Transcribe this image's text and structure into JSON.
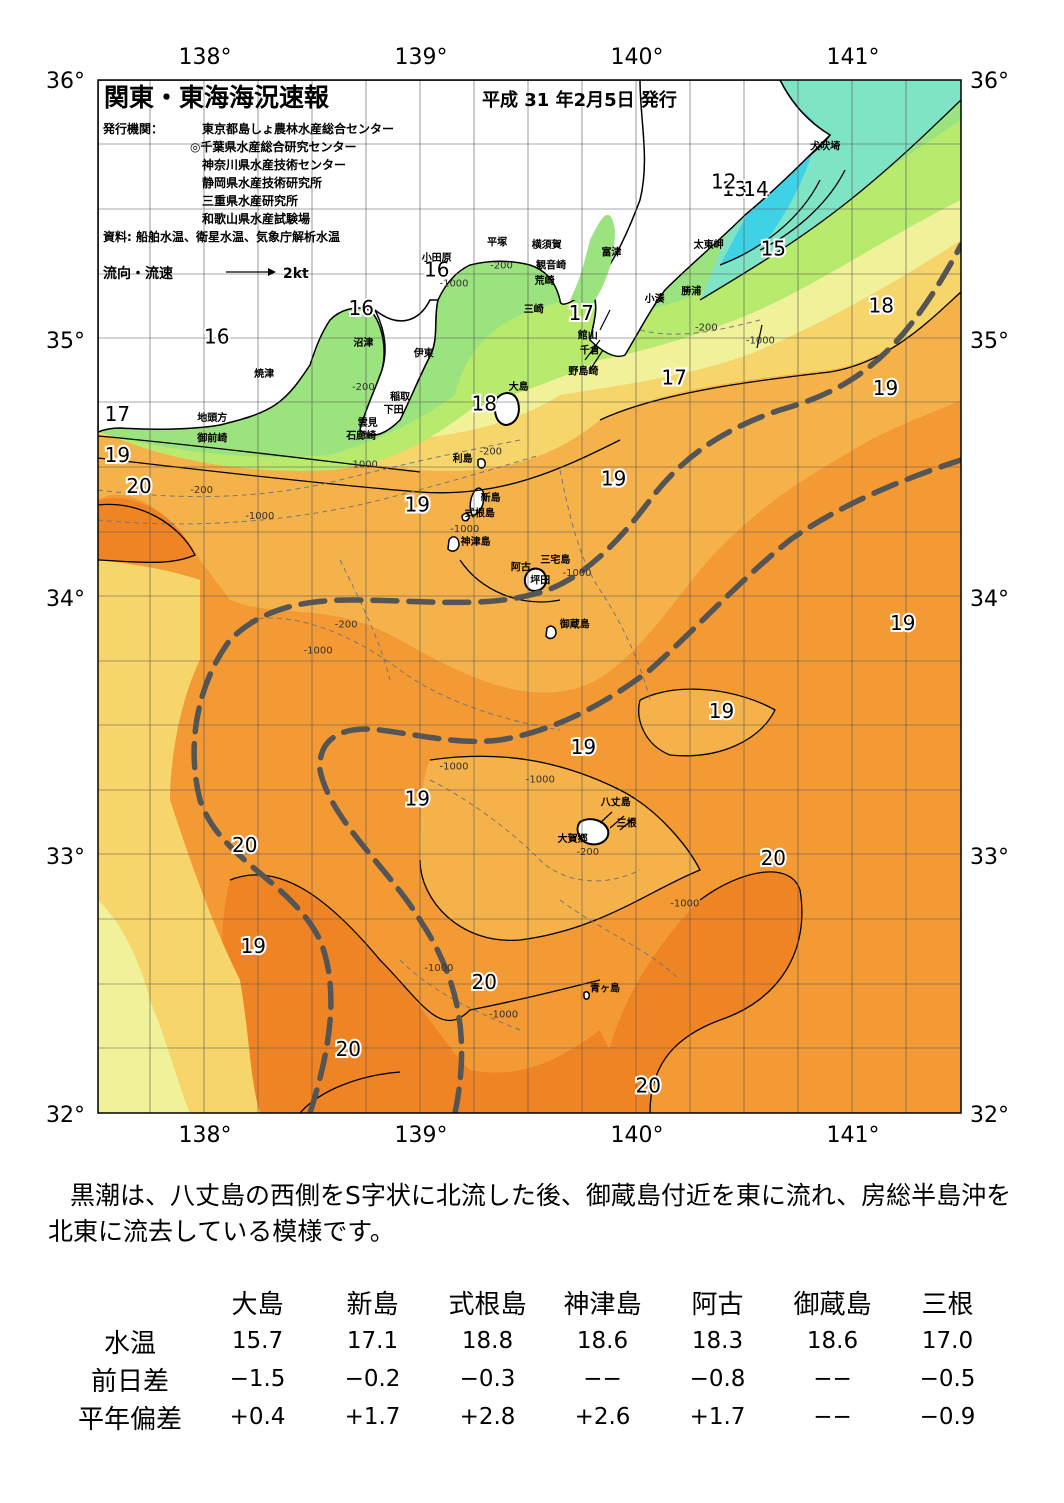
{
  "title": "関東・東海海況速報",
  "issue_date": "平成 31 年2月5日 発行",
  "issuers_label": "発行機関：",
  "issuers": [
    "東京都島しょ農林水産総合センター",
    "◎千葉県水産総合研究センター",
    "神奈川県水産技術センター",
    "静岡県水産技術研究所",
    "三重県水産研究所",
    "和歌山県水産試験場"
  ],
  "source": "資料: 船舶水温、衛星水温、気象庁解析水温",
  "flow_legend": {
    "label": "流向・流速",
    "speed": "2kt"
  },
  "axes": {
    "lon_labels": [
      "138°",
      "139°",
      "140°",
      "141°"
    ],
    "lat_labels": [
      "36°",
      "35°",
      "34°",
      "33°",
      "32°"
    ],
    "lon_range": [
      137.5,
      141.5
    ],
    "lat_range": [
      32,
      36
    ]
  },
  "place_labels": [
    {
      "text": "犬吠埼",
      "lon": 140.87,
      "lat": 35.73
    },
    {
      "text": "太東岬",
      "lon": 140.33,
      "lat": 35.35
    },
    {
      "text": "勝浦",
      "lon": 140.25,
      "lat": 35.17
    },
    {
      "text": "小湊",
      "lon": 140.08,
      "lat": 35.14
    },
    {
      "text": "富津",
      "lon": 139.88,
      "lat": 35.32
    },
    {
      "text": "横須賀",
      "lon": 139.58,
      "lat": 35.35
    },
    {
      "text": "観音崎",
      "lon": 139.6,
      "lat": 35.27
    },
    {
      "text": "荒崎",
      "lon": 139.57,
      "lat": 35.21
    },
    {
      "text": "平塚",
      "lon": 139.35,
      "lat": 35.36
    },
    {
      "text": "小田原",
      "lon": 139.07,
      "lat": 35.3
    },
    {
      "text": "三崎",
      "lon": 139.52,
      "lat": 35.1
    },
    {
      "text": "館山",
      "lon": 139.77,
      "lat": 35.0
    },
    {
      "text": "千倉",
      "lon": 139.78,
      "lat": 34.94
    },
    {
      "text": "野島崎",
      "lon": 139.75,
      "lat": 34.86
    },
    {
      "text": "沼津",
      "lon": 138.73,
      "lat": 34.97
    },
    {
      "text": "伊東",
      "lon": 139.01,
      "lat": 34.93
    },
    {
      "text": "焼津",
      "lon": 138.27,
      "lat": 34.85
    },
    {
      "text": "稲取",
      "lon": 138.9,
      "lat": 34.76
    },
    {
      "text": "下田",
      "lon": 138.87,
      "lat": 34.71
    },
    {
      "text": "雲見",
      "lon": 138.75,
      "lat": 34.66
    },
    {
      "text": "石廊崎",
      "lon": 138.72,
      "lat": 34.61
    },
    {
      "text": "地頭方",
      "lon": 138.03,
      "lat": 34.68
    },
    {
      "text": "御前崎",
      "lon": 138.03,
      "lat": 34.6
    },
    {
      "text": "大島",
      "lon": 139.45,
      "lat": 34.8
    },
    {
      "text": "利島",
      "lon": 139.19,
      "lat": 34.52
    },
    {
      "text": "新島",
      "lon": 139.32,
      "lat": 34.37
    },
    {
      "text": "式根島",
      "lon": 139.27,
      "lat": 34.31
    },
    {
      "text": "神津島",
      "lon": 139.25,
      "lat": 34.2
    },
    {
      "text": "三宅島",
      "lon": 139.62,
      "lat": 34.13
    },
    {
      "text": "阿古",
      "lon": 139.46,
      "lat": 34.1
    },
    {
      "text": "坪田",
      "lon": 139.55,
      "lat": 34.05
    },
    {
      "text": "御蔵島",
      "lon": 139.71,
      "lat": 33.88
    },
    {
      "text": "八丈島",
      "lon": 139.9,
      "lat": 33.19
    },
    {
      "text": "三根",
      "lon": 139.95,
      "lat": 33.11
    },
    {
      "text": "大賀郷",
      "lon": 139.7,
      "lat": 33.05
    },
    {
      "text": "青ヶ島",
      "lon": 139.85,
      "lat": 32.47
    }
  ],
  "isotherm_labels": [
    {
      "text": "13",
      "lon": 140.45,
      "lat": 35.55
    },
    {
      "text": "12",
      "lon": 140.4,
      "lat": 35.58
    },
    {
      "text": "14",
      "lon": 140.55,
      "lat": 35.55
    },
    {
      "text": "15",
      "lon": 140.63,
      "lat": 35.32
    },
    {
      "text": "16",
      "lon": 139.07,
      "lat": 35.24
    },
    {
      "text": "16",
      "lon": 138.72,
      "lat": 35.09
    },
    {
      "text": "16",
      "lon": 138.05,
      "lat": 34.98
    },
    {
      "text": "17",
      "lon": 139.74,
      "lat": 35.07
    },
    {
      "text": "17",
      "lon": 140.17,
      "lat": 34.82
    },
    {
      "text": "17",
      "lon": 137.59,
      "lat": 34.68
    },
    {
      "text": "18",
      "lon": 139.29,
      "lat": 34.72
    },
    {
      "text": "18",
      "lon": 141.13,
      "lat": 35.1
    },
    {
      "text": "19",
      "lon": 141.15,
      "lat": 34.78
    },
    {
      "text": "19",
      "lon": 137.59,
      "lat": 34.52
    },
    {
      "text": "19",
      "lon": 139.89,
      "lat": 34.43
    },
    {
      "text": "19",
      "lon": 138.98,
      "lat": 34.33
    },
    {
      "text": "19",
      "lon": 141.23,
      "lat": 33.87
    },
    {
      "text": "19",
      "lon": 140.39,
      "lat": 33.53
    },
    {
      "text": "19",
      "lon": 139.75,
      "lat": 33.39
    },
    {
      "text": "19",
      "lon": 138.98,
      "lat": 33.19
    },
    {
      "text": "19",
      "lon": 138.22,
      "lat": 32.62
    },
    {
      "text": "20",
      "lon": 137.69,
      "lat": 34.4
    },
    {
      "text": "20",
      "lon": 138.18,
      "lat": 33.01
    },
    {
      "text": "20",
      "lon": 140.63,
      "lat": 32.96
    },
    {
      "text": "20",
      "lon": 139.29,
      "lat": 32.48
    },
    {
      "text": "20",
      "lon": 138.66,
      "lat": 32.22
    },
    {
      "text": "20",
      "lon": 140.05,
      "lat": 32.08
    }
  ],
  "depth_labels": [
    {
      "text": "-200",
      "lon": 139.37,
      "lat": 35.27
    },
    {
      "text": "-1000",
      "lon": 139.15,
      "lat": 35.2
    },
    {
      "text": "-200",
      "lon": 140.32,
      "lat": 35.03
    },
    {
      "text": "-1000",
      "lon": 140.57,
      "lat": 34.98
    },
    {
      "text": "-200",
      "lon": 138.73,
      "lat": 34.8
    },
    {
      "text": "-200",
      "lon": 139.32,
      "lat": 34.55
    },
    {
      "text": "-1000",
      "lon": 138.73,
      "lat": 34.5
    },
    {
      "text": "-200",
      "lon": 137.98,
      "lat": 34.4
    },
    {
      "text": "-1000",
      "lon": 138.25,
      "lat": 34.3
    },
    {
      "text": "-1000",
      "lon": 139.2,
      "lat": 34.25
    },
    {
      "text": "-1000",
      "lon": 139.72,
      "lat": 34.08
    },
    {
      "text": "-200",
      "lon": 138.65,
      "lat": 33.88
    },
    {
      "text": "-1000",
      "lon": 138.52,
      "lat": 33.78
    },
    {
      "text": "-1000",
      "lon": 139.15,
      "lat": 33.33
    },
    {
      "text": "-1000",
      "lon": 139.55,
      "lat": 33.28
    },
    {
      "text": "-200",
      "lon": 139.77,
      "lat": 33.0
    },
    {
      "text": "-1000",
      "lon": 140.22,
      "lat": 32.8
    },
    {
      "text": "-1000",
      "lon": 139.08,
      "lat": 32.55
    },
    {
      "text": "-1000",
      "lon": 139.38,
      "lat": 32.37
    }
  ],
  "colors": {
    "cold_12_13": "#3fd1e6",
    "cool_14_15": "#7fe3c6",
    "green_16": "#9be37f",
    "green_16b": "#b8ea6e",
    "yellow_17": "#f1f19a",
    "yellow_18": "#f6d56a",
    "orange_19": "#f5b24a",
    "orange_20": "#f49a34",
    "orange_21": "#ef8424",
    "kuroshio_axis": "#555555",
    "land": "#ffffff"
  },
  "summary": "黒潮は、八丈島の西側をS字状に北流した後、御蔵島付近を東に流れ、房総半島沖を北東に流去している模様です。",
  "table": {
    "columns": [
      "大島",
      "新島",
      "式根島",
      "神津島",
      "阿古",
      "御蔵島",
      "三根"
    ],
    "rows": [
      {
        "label": "水温",
        "values": [
          "15.7",
          "17.1",
          "18.8",
          "18.6",
          "18.3",
          "18.6",
          "17.0"
        ]
      },
      {
        "label": "前日差",
        "values": [
          "−1.5",
          "−0.2",
          "−0.3",
          "−−",
          "−0.8",
          "−−",
          "−0.5"
        ]
      },
      {
        "label": "平年偏差",
        "values": [
          "+0.4",
          "+1.7",
          "+2.8",
          "+2.6",
          "+1.7",
          "−−",
          "−0.9"
        ]
      }
    ]
  }
}
